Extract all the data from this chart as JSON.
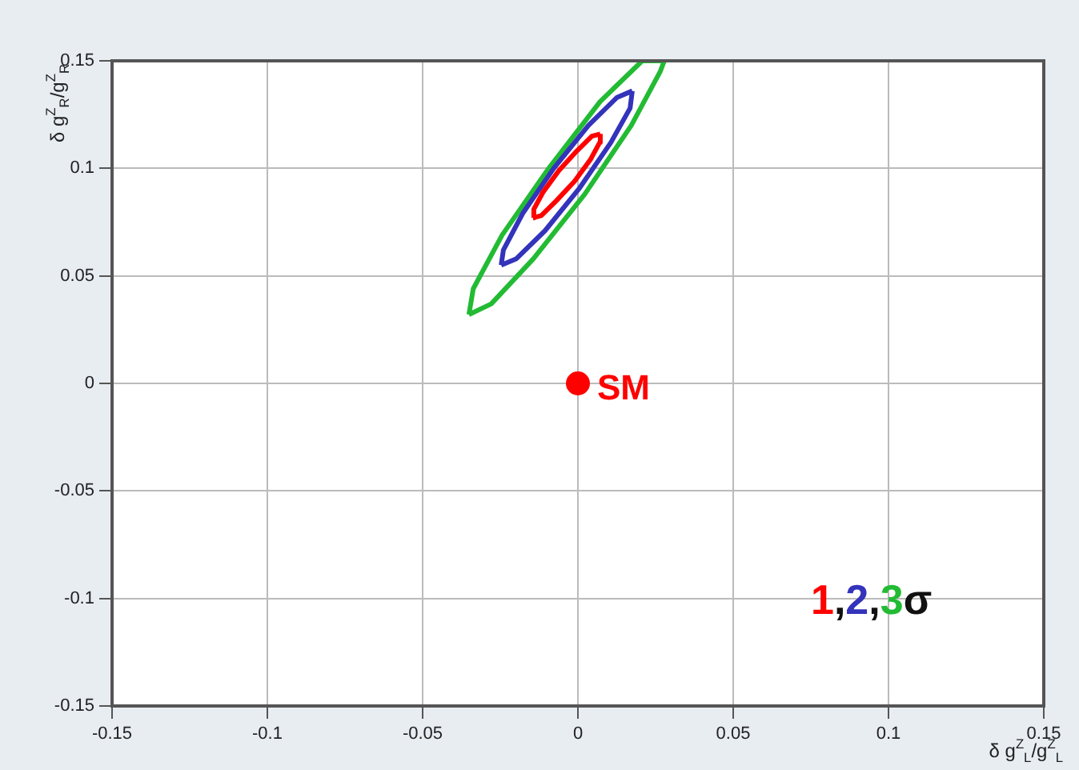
{
  "chart_data": {
    "type": "line",
    "xlabel": "δ g$^{Z}$$_{L}$/g$^{Z}$$_{L}$",
    "ylabel": "δ g$^{Z}$$_{R}$/g$^{Z}$$_{R}$",
    "xlim": [
      -0.15,
      0.15
    ],
    "ylim": [
      -0.15,
      0.15
    ],
    "xticks": [
      -0.15,
      -0.1,
      -0.05,
      0,
      0.05,
      0.1,
      0.15
    ],
    "yticks": [
      -0.15,
      -0.1,
      -0.05,
      0,
      0.05,
      0.1,
      0.15
    ],
    "grid": true,
    "legend": false,
    "marker": "none",
    "line_style": "solid",
    "annotations": [
      "1,2,3σ"
    ],
    "series": [
      {
        "color": "#ff0000",
        "x": [
          -0.0144,
          -0.0118,
          -0.0069,
          -0.0011,
          0.004,
          0.007,
          0.0072
        ],
        "values": [
          0.077,
          0.078,
          0.085,
          0.094,
          0.104,
          0.112,
          0.116
        ]
      },
      {
        "color": "#ff0000",
        "x": [
          -0.0144,
          -0.0142,
          -0.0112,
          -0.0061,
          -0.0004,
          0.0045,
          0.0072
        ],
        "values": [
          0.077,
          0.081,
          0.089,
          0.099,
          0.108,
          0.115,
          0.116
        ]
      },
      {
        "color": "#3333bb",
        "x": [
          -0.0247,
          -0.0198,
          -0.0106,
          0.0006,
          0.0106,
          0.0168,
          0.0175
        ],
        "values": [
          0.055,
          0.058,
          0.071,
          0.091,
          0.112,
          0.128,
          0.136
        ]
      },
      {
        "color": "#3333bb",
        "x": [
          -0.0247,
          -0.024,
          -0.0178,
          -0.0078,
          0.0034,
          0.0126,
          0.0175
        ],
        "values": [
          0.055,
          0.062,
          0.079,
          0.1,
          0.12,
          0.133,
          0.136
        ]
      },
      {
        "color": "#22bb33",
        "x": [
          -0.0351,
          -0.0279,
          -0.0143,
          0.0022,
          0.0172,
          0.0265,
          0.0278
        ],
        "values": [
          0.032,
          0.037,
          0.058,
          0.088,
          0.12,
          0.145,
          0.15
        ]
      },
      {
        "color": "#22bb33",
        "x": [
          -0.0351,
          -0.0337,
          -0.0244,
          -0.0094,
          0.0071,
          0.0207,
          0.0278
        ],
        "values": [
          0.032,
          0.044,
          0.069,
          0.1,
          0.131,
          0.15,
          0.15
        ]
      },
      {
        "type": "scatter",
        "name": "SM",
        "color": "#ff0000",
        "marker": "circle",
        "x": [
          0
        ],
        "values": [
          0
        ]
      }
    ]
  }
}
